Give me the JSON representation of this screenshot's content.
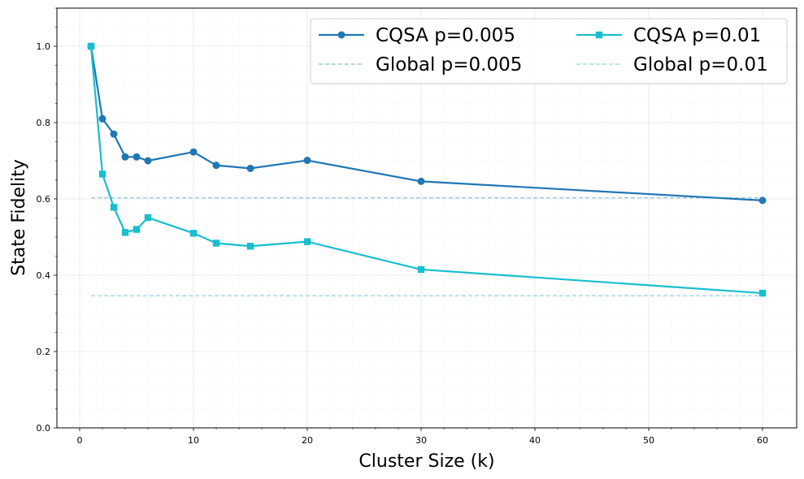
{
  "chart_data": {
    "type": "line",
    "title": "",
    "xlabel": "Cluster Size (k)",
    "ylabel": "State Fidelity",
    "xlim": [
      -2,
      63
    ],
    "ylim": [
      0,
      1.1
    ],
    "xticks": [
      0,
      10,
      20,
      30,
      40,
      50,
      60
    ],
    "yticks": [
      0.0,
      0.2,
      0.4,
      0.6,
      0.8,
      1.0
    ],
    "xtick_labels": [
      "0",
      "10",
      "20",
      "30",
      "40",
      "50",
      "60"
    ],
    "ytick_labels": [
      "0.0",
      "0.2",
      "0.4",
      "0.6",
      "0.8",
      "1.0"
    ],
    "grid": true,
    "legend_position": "upper-right",
    "series": [
      {
        "name": "CQSA p=0.005",
        "color": "#1f77b4",
        "marker": "circle",
        "style": "solid",
        "x": [
          1,
          2,
          3,
          4,
          5,
          6,
          10,
          12,
          15,
          20,
          30,
          60
        ],
        "y": [
          1.0,
          0.81,
          0.77,
          0.71,
          0.71,
          0.7,
          0.723,
          0.688,
          0.68,
          0.701,
          0.646,
          0.596
        ]
      },
      {
        "name": "CQSA p=0.01",
        "color": "#17becf",
        "marker": "square",
        "style": "solid",
        "x": [
          1,
          2,
          3,
          4,
          5,
          6,
          10,
          12,
          15,
          20,
          30,
          60
        ],
        "y": [
          1.0,
          0.665,
          0.578,
          0.512,
          0.52,
          0.551,
          0.51,
          0.484,
          0.476,
          0.488,
          0.415,
          0.353
        ]
      },
      {
        "name": "Global p=0.005",
        "color": "#9ecae1",
        "marker": "none",
        "style": "dashed",
        "x": [
          1,
          60
        ],
        "y": [
          0.603,
          0.603
        ]
      },
      {
        "name": "Global p=0.01",
        "color": "#9edae5",
        "marker": "none",
        "style": "dashed",
        "x": [
          1,
          60
        ],
        "y": [
          0.346,
          0.346
        ]
      }
    ],
    "legend_order": [
      "CQSA p=0.005",
      "Global p=0.005",
      "CQSA p=0.01",
      "Global p=0.01"
    ]
  }
}
